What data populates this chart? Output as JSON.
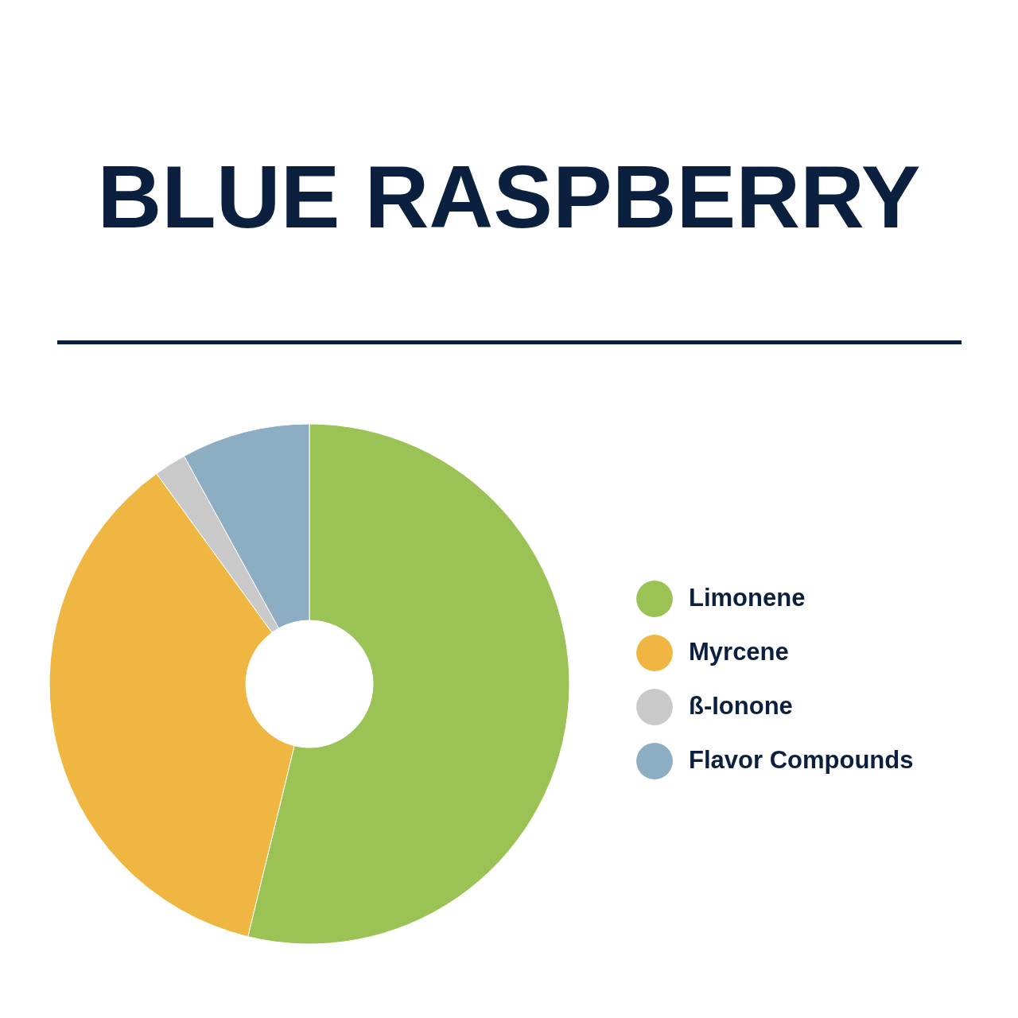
{
  "chart_data": {
    "type": "donut",
    "title": "BLUE RASPBERRY",
    "categories": [
      "Limonene",
      "Myrcene",
      "ß-Ionone",
      "Flavor Compounds"
    ],
    "values": [
      53.8,
      36.2,
      2.0,
      8.0
    ],
    "colors": [
      "#9ac254",
      "#f0b642",
      "#c9c9c9",
      "#8cadc2"
    ],
    "legend": "right"
  }
}
